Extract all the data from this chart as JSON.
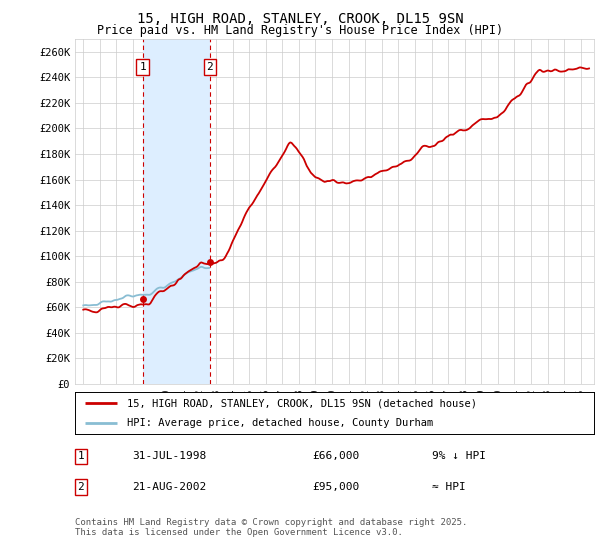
{
  "title_line1": "15, HIGH ROAD, STANLEY, CROOK, DL15 9SN",
  "title_line2": "Price paid vs. HM Land Registry's House Price Index (HPI)",
  "ylabel_ticks": [
    "£0",
    "£20K",
    "£40K",
    "£60K",
    "£80K",
    "£100K",
    "£120K",
    "£140K",
    "£160K",
    "£180K",
    "£200K",
    "£220K",
    "£240K",
    "£260K"
  ],
  "ytick_values": [
    0,
    20000,
    40000,
    60000,
    80000,
    100000,
    120000,
    140000,
    160000,
    180000,
    200000,
    220000,
    240000,
    260000
  ],
  "ylim": [
    0,
    270000
  ],
  "sale1_date_x": 1998.58,
  "sale1_price": 66000,
  "sale1_label": "1",
  "sale1_date_str": "31-JUL-1998",
  "sale1_price_str": "£66,000",
  "sale1_hpi_str": "9% ↓ HPI",
  "sale2_date_x": 2002.64,
  "sale2_price": 95000,
  "sale2_label": "2",
  "sale2_date_str": "21-AUG-2002",
  "sale2_price_str": "£95,000",
  "sale2_hpi_str": "≈ HPI",
  "shade_x1": 1998.58,
  "shade_x2": 2002.64,
  "legend_line1": "15, HIGH ROAD, STANLEY, CROOK, DL15 9SN (detached house)",
  "legend_line2": "HPI: Average price, detached house, County Durham",
  "footer": "Contains HM Land Registry data © Crown copyright and database right 2025.\nThis data is licensed under the Open Government Licence v3.0.",
  "house_color": "#cc0000",
  "hpi_color": "#89bdd3",
  "shade_color": "#ddeeff",
  "marker_color": "#cc0000",
  "dashed_line_color": "#cc0000",
  "background_color": "#ffffff",
  "grid_color": "#cccccc",
  "xtick_years": [
    1995,
    1996,
    1997,
    1998,
    1999,
    2000,
    2001,
    2002,
    2003,
    2004,
    2005,
    2006,
    2007,
    2008,
    2009,
    2010,
    2011,
    2012,
    2013,
    2014,
    2015,
    2016,
    2017,
    2018,
    2019,
    2020,
    2021,
    2022,
    2023,
    2024,
    2025
  ]
}
